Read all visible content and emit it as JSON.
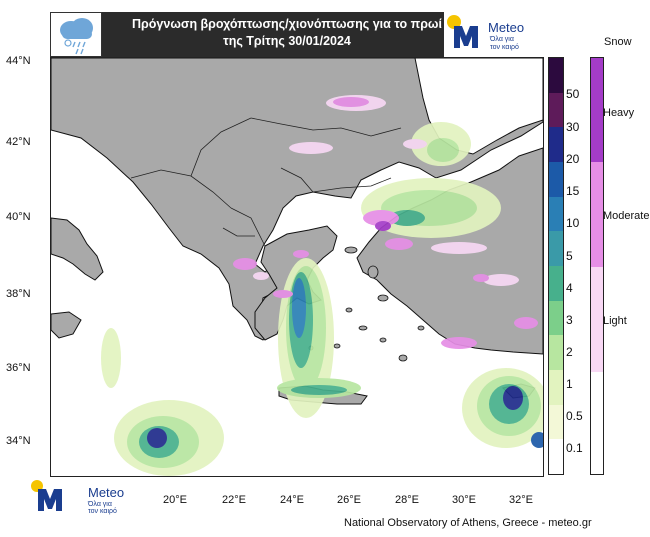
{
  "title": {
    "line1": "Πρόγνωση βροχόπτωσης/χιονόπτωσης για το πρωί",
    "line2": "της Τρίτης 30/01/2024"
  },
  "logo": {
    "word": "Meteo",
    "tagline_1": "Όλα για",
    "tagline_2": "τον καιρό",
    "sun_color": "#f5c400",
    "brand_color": "#1a3d8f"
  },
  "icons": {
    "weather_icon": "cloud-rain-icon",
    "logo_icon": "meteo-logo-icon"
  },
  "axes": {
    "lat_labels": [
      "44°N",
      "42°N",
      "40°N",
      "38°N",
      "36°N",
      "34°N"
    ],
    "lon_labels": [
      "20°E",
      "22°E",
      "24°E",
      "26°E",
      "28°E",
      "30°E",
      "32°E"
    ]
  },
  "legend_rain": {
    "labels": [
      "50",
      "30",
      "20",
      "15",
      "10",
      "5",
      "4",
      "3",
      "2",
      "1",
      "0.5",
      "0.1"
    ],
    "colors": [
      "#2c0a3e",
      "#5e1b5a",
      "#1f2b8a",
      "#1c5aa8",
      "#2a7fb5",
      "#3a9aa8",
      "#47b08c",
      "#7ccf8a",
      "#b7e6a0",
      "#e2f3bf",
      "#f3f8d7",
      "#ffffff"
    ]
  },
  "legend_snow": {
    "title": "Snow",
    "labels": [
      "Heavy",
      "Moderate",
      "Light"
    ],
    "colors": [
      "#a43cc8",
      "#e68ee6",
      "#f8d8f4",
      "#ffffff"
    ]
  },
  "map_colors": {
    "land": "#a9a9a9",
    "sea": "#ffffff"
  },
  "credit": "National Observatory of Athens, Greece - meteo.gr"
}
